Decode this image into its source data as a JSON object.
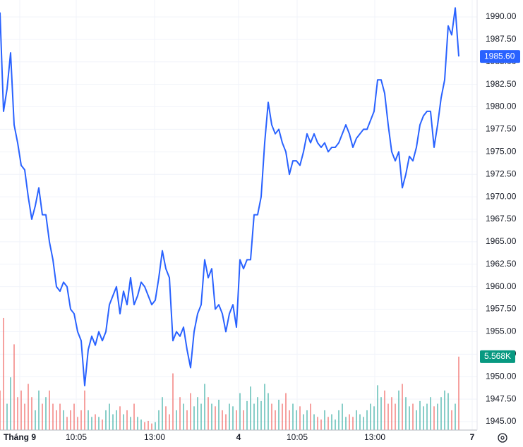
{
  "chart_data": {
    "type": "line",
    "color": "#2962ff",
    "up_color": "#26a69a",
    "down_color": "#ef5350",
    "grid": true,
    "xlim": [
      0,
      135
    ],
    "xticks": [
      {
        "value": 5.6,
        "label": "Tháng 9"
      },
      {
        "value": 21.6,
        "label": "10:05"
      },
      {
        "value": 43.8,
        "label": "13:00"
      },
      {
        "value": 67.6,
        "label": "4"
      },
      {
        "value": 84.2,
        "label": "10:05"
      },
      {
        "value": 106.2,
        "label": "13:00"
      },
      {
        "value": 133.8,
        "label": "7"
      }
    ],
    "ylim": [
      1944.06,
      1991.88
    ],
    "yticks": [
      {
        "value": 1945,
        "label": "1945.00"
      },
      {
        "value": 1947.5,
        "label": "1947.50"
      },
      {
        "value": 1950,
        "label": "1950.00"
      },
      {
        "value": 1952.5,
        "label": "1952.50"
      },
      {
        "value": 1955,
        "label": "1955.00"
      },
      {
        "value": 1957.5,
        "label": "1957.50"
      },
      {
        "value": 1960,
        "label": "1960.00"
      },
      {
        "value": 1962.5,
        "label": "1962.50"
      },
      {
        "value": 1965,
        "label": "1965.00"
      },
      {
        "value": 1967.5,
        "label": "1967.50"
      },
      {
        "value": 1970,
        "label": "1970.00"
      },
      {
        "value": 1972.5,
        "label": "1972.50"
      },
      {
        "value": 1975,
        "label": "1975.00"
      },
      {
        "value": 1977.5,
        "label": "1977.50"
      },
      {
        "value": 1980,
        "label": "1980.00"
      },
      {
        "value": 1982.5,
        "label": "1982.50"
      },
      {
        "value": 1985,
        "label": "1985.00"
      },
      {
        "value": 1987.5,
        "label": "1987.50"
      },
      {
        "value": 1990,
        "label": "1990.00"
      }
    ],
    "values": [
      1990.5,
      1979.5,
      1982,
      1986,
      1978,
      1976,
      1973.5,
      1973,
      1970,
      1967.5,
      1969,
      1971,
      1968,
      1968,
      1965,
      1963,
      1960,
      1959.5,
      1960.5,
      1960,
      1957.5,
      1957,
      1955,
      1954,
      1949,
      1953,
      1954.5,
      1953.5,
      1955,
      1954,
      1955,
      1958,
      1959,
      1960,
      1957,
      1959.5,
      1958,
      1961,
      1958,
      1959,
      1960.5,
      1960,
      1959,
      1958,
      1958.5,
      1961,
      1964,
      1962,
      1961,
      1954,
      1955,
      1954.5,
      1955.5,
      1953,
      1951,
      1955,
      1957,
      1958,
      1963,
      1961,
      1962,
      1957.5,
      1958,
      1957,
      1955,
      1957,
      1958,
      1955.5,
      1963,
      1962,
      1963,
      1963,
      1968,
      1968,
      1970,
      1976,
      1980.5,
      1978,
      1977,
      1977.5,
      1976,
      1975,
      1972.5,
      1974,
      1974,
      1973.5,
      1975,
      1977,
      1976,
      1977,
      1976,
      1975.5,
      1976,
      1975,
      1975.5,
      1975.5,
      1976,
      1977,
      1978,
      1977,
      1975.5,
      1976.5,
      1977,
      1977.5,
      1977.5,
      1978.5,
      1979.5,
      1983,
      1983,
      1981.5,
      1978,
      1975,
      1974,
      1975,
      1971,
      1972.5,
      1974.5,
      1974,
      1975.5,
      1978,
      1979,
      1979.5,
      1979.5,
      1975.5,
      1978,
      1981,
      1983,
      1989,
      1988,
      1991,
      1985.6
    ],
    "volume": [
      3,
      8.5,
      2,
      4,
      6.5,
      2.5,
      3,
      2,
      3.5,
      2.5,
      1.5,
      3,
      2,
      2.5,
      3,
      2,
      1.5,
      2,
      1.5,
      1,
      1.5,
      2,
      1,
      1.5,
      3,
      1.5,
      1,
      1.2,
      1,
      0.8,
      1.5,
      2,
      1.2,
      1.5,
      1.8,
      1.2,
      1.5,
      1,
      2,
      1,
      0.8,
      0.6,
      0.7,
      0.5,
      0.6,
      1.5,
      2.5,
      1.8,
      1.2,
      4.3,
      1.5,
      2.5,
      2,
      1.5,
      2.8,
      1.8,
      2.5,
      2,
      3.5,
      2.5,
      2,
      1.8,
      2.3,
      1.5,
      1.2,
      2,
      1.8,
      1.5,
      2.8,
      1.5,
      2.2,
      3.3,
      2,
      2.5,
      2.2,
      3.5,
      2.8,
      2,
      1.5,
      2.3,
      2,
      2.8,
      1.5,
      2,
      1.5,
      1.8,
      1.2,
      1.5,
      2,
      1.2,
      1,
      0.8,
      1.5,
      1,
      1.2,
      0.8,
      1.5,
      2,
      1,
      1.2,
      1,
      1.5,
      1.2,
      1,
      1.5,
      2,
      1.8,
      3.4,
      2.5,
      3,
      2,
      2.5,
      2,
      3,
      3.5,
      2.5,
      1.8,
      2,
      1.5,
      2.2,
      1.8,
      2,
      2.5,
      1.8,
      2,
      2.5,
      3,
      2.8,
      1.5,
      2,
      5.568
    ],
    "volume_ylim": [
      0,
      32.6
    ],
    "last_price": {
      "value": 1985.6,
      "label": "1985.60"
    },
    "last_volume": {
      "value": 5.568,
      "label": "5.568K"
    }
  }
}
